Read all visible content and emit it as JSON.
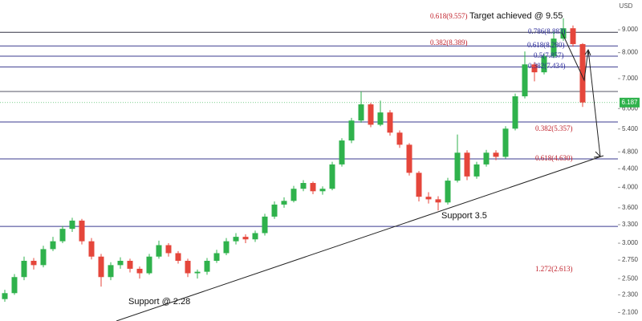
{
  "chart_data": {
    "type": "candlestick",
    "currency": "USD",
    "log_scale": true,
    "ylim": [
      2.01,
      10.49
    ],
    "yticks": [
      {
        "value": 9,
        "label": "9.000"
      },
      {
        "value": 8,
        "label": "8.000"
      },
      {
        "value": 7,
        "label": "7.000"
      },
      {
        "value": 6,
        "label": "6.000"
      },
      {
        "value": 5.4,
        "label": "5.400"
      },
      {
        "value": 4.8,
        "label": "4.800"
      },
      {
        "value": 4.4,
        "label": "4.400"
      },
      {
        "value": 4,
        "label": "4.000"
      },
      {
        "value": 3.6,
        "label": "3.600"
      },
      {
        "value": 3.3,
        "label": "3.300"
      },
      {
        "value": 3,
        "label": "3.000"
      },
      {
        "value": 2.75,
        "label": "2.750"
      },
      {
        "value": 2.5,
        "label": "2.500"
      },
      {
        "value": 2.3,
        "label": "2.300"
      },
      {
        "value": 2.1,
        "label": "2.100"
      }
    ],
    "up_color": "#2fb24c",
    "down_color": "#e5463b",
    "open": [
      2.25,
      2.32,
      2.52,
      2.74,
      2.68,
      2.91,
      3.03,
      3.23,
      3.37,
      3.03,
      2.8,
      2.52,
      2.68,
      2.74,
      2.63,
      2.57,
      2.8,
      2.97,
      2.85,
      2.74,
      2.57,
      2.59,
      2.74,
      2.85,
      3.03,
      3.1,
      3.06,
      3.16,
      3.44,
      3.66,
      3.73,
      3.97,
      4.09,
      3.92,
      3.97,
      4.5,
      5.09,
      5.64,
      6.13,
      5.52,
      5.88,
      5.3,
      4.98,
      4.31,
      3.81,
      3.76,
      3.7,
      4.14,
      4.78,
      4.23,
      4.5,
      4.78,
      4.68,
      5.41,
      6.39,
      7.53,
      7.23,
      7.85,
      8.6,
      9.07,
      8.36
    ],
    "high": [
      2.36,
      2.56,
      2.8,
      2.78,
      2.96,
      3.1,
      3.28,
      3.42,
      3.4,
      3.08,
      2.84,
      2.72,
      2.79,
      2.77,
      2.66,
      2.84,
      3.04,
      3.0,
      2.88,
      2.77,
      2.62,
      2.78,
      2.9,
      3.08,
      3.16,
      3.14,
      3.2,
      3.49,
      3.72,
      3.8,
      4.03,
      4.15,
      4.12,
      4.02,
      4.56,
      5.15,
      5.72,
      6.55,
      6.18,
      6.25,
      5.95,
      5.36,
      5.02,
      4.35,
      3.9,
      3.82,
      4.2,
      5.25,
      4.84,
      4.56,
      4.85,
      4.84,
      5.48,
      6.48,
      8.05,
      7.62,
      7.95,
      8.9,
      9.55,
      9.2,
      8.4
    ],
    "low": [
      2.22,
      2.3,
      2.48,
      2.62,
      2.65,
      2.88,
      3.0,
      3.18,
      2.98,
      2.76,
      2.4,
      2.48,
      2.63,
      2.58,
      2.5,
      2.55,
      2.77,
      2.8,
      2.7,
      2.52,
      2.5,
      2.55,
      2.71,
      2.82,
      2.98,
      3.0,
      3.02,
      3.12,
      3.4,
      3.6,
      3.7,
      3.92,
      3.86,
      3.85,
      3.94,
      4.45,
      5.02,
      5.58,
      5.45,
      5.48,
      5.22,
      4.9,
      4.25,
      3.72,
      3.68,
      3.55,
      3.66,
      4.1,
      4.15,
      4.18,
      4.45,
      4.6,
      4.64,
      5.36,
      6.32,
      6.9,
      7.15,
      7.78,
      8.5,
      8.25,
      6.05
    ],
    "close": [
      2.32,
      2.52,
      2.74,
      2.68,
      2.91,
      3.03,
      3.23,
      3.37,
      3.03,
      2.8,
      2.52,
      2.68,
      2.74,
      2.63,
      2.57,
      2.8,
      2.97,
      2.85,
      2.74,
      2.57,
      2.59,
      2.74,
      2.85,
      3.03,
      3.1,
      3.06,
      3.16,
      3.44,
      3.66,
      3.73,
      3.97,
      4.09,
      3.92,
      3.97,
      4.5,
      5.09,
      5.64,
      6.13,
      5.52,
      5.88,
      5.3,
      4.98,
      4.31,
      3.81,
      3.76,
      3.7,
      4.14,
      4.78,
      4.23,
      4.5,
      4.78,
      4.68,
      5.41,
      6.39,
      7.53,
      7.23,
      7.85,
      8.6,
      9.07,
      8.36,
      6.19
    ],
    "last_price": 6.187,
    "levels": [
      {
        "value": 8.883,
        "color": "#333344"
      },
      {
        "value": 8.28,
        "color": "#3b3b8f"
      },
      {
        "value": 7.857,
        "color": "#3b3b8f"
      },
      {
        "value": 7.434,
        "color": "#3b3b8f"
      },
      {
        "value": 6.55,
        "color": "#555566"
      },
      {
        "value": 5.6,
        "color": "#3b3b8f"
      },
      {
        "value": 4.63,
        "color": "#3b3b8f"
      },
      {
        "value": 3.27,
        "color": "#3b3b8f"
      }
    ],
    "annotations": [
      {
        "text": "0.618(9.557)",
        "color": "#c0202a"
      },
      {
        "text": "Target achieved @ 9.55",
        "color": "#111111"
      },
      {
        "text": "0.382(8.389)",
        "color": "#c0202a"
      },
      {
        "text": "0.786(8.883)",
        "color": "#2a2a9a"
      },
      {
        "text": "0.618(8.280)",
        "color": "#2a2a9a"
      },
      {
        "text": "0.5(7.857)",
        "color": "#2a2a9a"
      },
      {
        "text": "0.382(7.434)",
        "color": "#2a2a9a"
      },
      {
        "text": "0.382(5.357)",
        "color": "#c0202a"
      },
      {
        "text": "0.618(4.630)",
        "color": "#c0202a"
      },
      {
        "text": "1.272(2.613)",
        "color": "#c0202a"
      },
      {
        "text": "Support 3.5",
        "color": "#111111"
      },
      {
        "text": "Support @ 2.28",
        "color": "#111111"
      }
    ]
  }
}
